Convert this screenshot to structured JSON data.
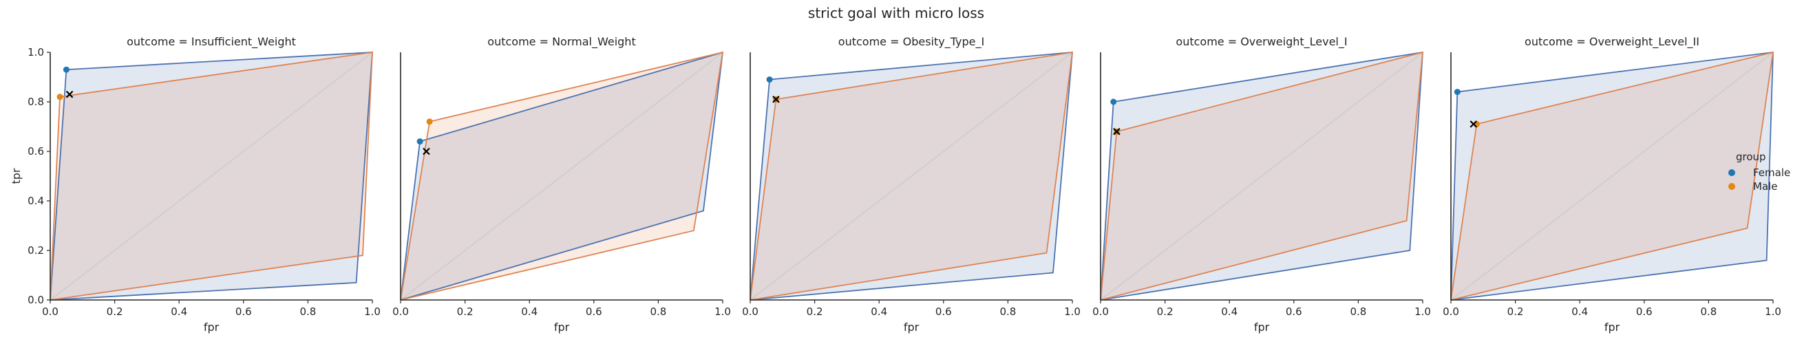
{
  "suptitle": "strict goal with micro loss",
  "colors": {
    "Female": "#4c72b0",
    "Male": "#dd8452",
    "female_marker": "#1f77b4",
    "male_marker": "#e68613",
    "diagonal": "#cccccc"
  },
  "legend": {
    "title": "group",
    "entries": [
      "Female",
      "Male"
    ],
    "placement": "right"
  },
  "chart_data": [
    {
      "type": "line",
      "title": "outcome = Insufficient_Weight",
      "xlabel": "fpr",
      "ylabel": "tpr",
      "xlim": [
        0,
        1
      ],
      "ylim": [
        0,
        1
      ],
      "xticks": [
        "0.0",
        "0.2",
        "0.4",
        "0.6",
        "0.8",
        "1.0"
      ],
      "yticks": [
        "0.0",
        "0.2",
        "0.4",
        "0.6",
        "0.8",
        "1.0"
      ],
      "series": [
        {
          "name": "Female",
          "point": [
            0.05,
            0.93
          ],
          "hull": [
            [
              0,
              0
            ],
            [
              0.05,
              0.93
            ],
            [
              1,
              1
            ],
            [
              0.95,
              0.07
            ],
            [
              0,
              0
            ]
          ]
        },
        {
          "name": "Male",
          "point": [
            0.03,
            0.82
          ],
          "hull": [
            [
              0,
              0
            ],
            [
              0.03,
              0.82
            ],
            [
              1,
              1
            ],
            [
              0.97,
              0.18
            ],
            [
              0,
              0
            ]
          ]
        }
      ],
      "target": [
        0.06,
        0.83
      ]
    },
    {
      "type": "line",
      "title": "outcome = Normal_Weight",
      "xlabel": "fpr",
      "ylabel": "",
      "xlim": [
        0,
        1
      ],
      "ylim": [
        0,
        1
      ],
      "xticks": [
        "0.0",
        "0.2",
        "0.4",
        "0.6",
        "0.8",
        "1.0"
      ],
      "yticks": [],
      "series": [
        {
          "name": "Female",
          "point": [
            0.06,
            0.64
          ],
          "hull": [
            [
              0,
              0
            ],
            [
              0.06,
              0.64
            ],
            [
              1,
              1
            ],
            [
              0.94,
              0.36
            ],
            [
              0,
              0
            ]
          ]
        },
        {
          "name": "Male",
          "point": [
            0.09,
            0.72
          ],
          "hull": [
            [
              0,
              0
            ],
            [
              0.09,
              0.72
            ],
            [
              1,
              1
            ],
            [
              0.91,
              0.28
            ],
            [
              0,
              0
            ]
          ]
        }
      ],
      "target": [
        0.08,
        0.6
      ]
    },
    {
      "type": "line",
      "title": "outcome = Obesity_Type_I",
      "xlabel": "fpr",
      "ylabel": "",
      "xlim": [
        0,
        1
      ],
      "ylim": [
        0,
        1
      ],
      "xticks": [
        "0.0",
        "0.2",
        "0.4",
        "0.6",
        "0.8",
        "1.0"
      ],
      "yticks": [],
      "series": [
        {
          "name": "Female",
          "point": [
            0.06,
            0.89
          ],
          "hull": [
            [
              0,
              0
            ],
            [
              0.06,
              0.89
            ],
            [
              1,
              1
            ],
            [
              0.94,
              0.11
            ],
            [
              0,
              0
            ]
          ]
        },
        {
          "name": "Male",
          "point": [
            0.08,
            0.81
          ],
          "hull": [
            [
              0,
              0
            ],
            [
              0.08,
              0.81
            ],
            [
              1,
              1
            ],
            [
              0.92,
              0.19
            ],
            [
              0,
              0
            ]
          ]
        }
      ],
      "target": [
        0.08,
        0.81
      ]
    },
    {
      "type": "line",
      "title": "outcome = Overweight_Level_I",
      "xlabel": "fpr",
      "ylabel": "",
      "xlim": [
        0,
        1
      ],
      "ylim": [
        0,
        1
      ],
      "xticks": [
        "0.0",
        "0.2",
        "0.4",
        "0.6",
        "0.8",
        "1.0"
      ],
      "yticks": [],
      "series": [
        {
          "name": "Female",
          "point": [
            0.04,
            0.8
          ],
          "hull": [
            [
              0,
              0
            ],
            [
              0.04,
              0.8
            ],
            [
              1,
              1
            ],
            [
              0.96,
              0.2
            ],
            [
              0,
              0
            ]
          ]
        },
        {
          "name": "Male",
          "point": [
            0.05,
            0.68
          ],
          "hull": [
            [
              0,
              0
            ],
            [
              0.05,
              0.68
            ],
            [
              1,
              1
            ],
            [
              0.95,
              0.32
            ],
            [
              0,
              0
            ]
          ]
        }
      ],
      "target": [
        0.05,
        0.68
      ]
    },
    {
      "type": "line",
      "title": "outcome = Overweight_Level_II",
      "xlabel": "fpr",
      "ylabel": "",
      "xlim": [
        0,
        1
      ],
      "ylim": [
        0,
        1
      ],
      "xticks": [
        "0.0",
        "0.2",
        "0.4",
        "0.6",
        "0.8",
        "1.0"
      ],
      "yticks": [],
      "series": [
        {
          "name": "Female",
          "point": [
            0.02,
            0.84
          ],
          "hull": [
            [
              0,
              0
            ],
            [
              0.02,
              0.84
            ],
            [
              1,
              1
            ],
            [
              0.98,
              0.16
            ],
            [
              0,
              0
            ]
          ]
        },
        {
          "name": "Male",
          "point": [
            0.08,
            0.71
          ],
          "hull": [
            [
              0,
              0
            ],
            [
              0.08,
              0.71
            ],
            [
              1,
              1
            ],
            [
              0.92,
              0.29
            ],
            [
              0,
              0
            ]
          ]
        }
      ],
      "target": [
        0.07,
        0.71
      ]
    }
  ]
}
